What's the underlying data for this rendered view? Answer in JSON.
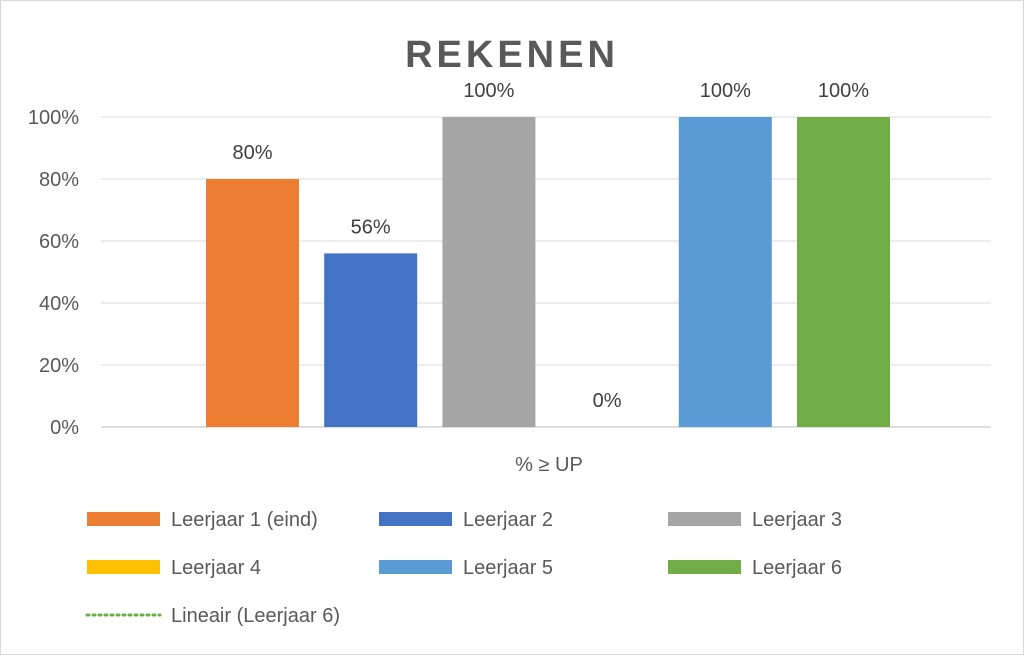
{
  "chart_data": {
    "type": "bar",
    "title": "REKENEN",
    "categories": [
      "% ≥ UP"
    ],
    "series": [
      {
        "name": "Leerjaar 1 (eind)",
        "values": [
          80
        ],
        "label": "80%",
        "color": "#ED7D31"
      },
      {
        "name": "Leerjaar 2",
        "values": [
          56
        ],
        "label": "56%",
        "color": "#4472C4"
      },
      {
        "name": "Leerjaar 3",
        "values": [
          100
        ],
        "label": "100%",
        "color": "#A5A5A5"
      },
      {
        "name": "Leerjaar 4",
        "values": [
          0
        ],
        "label": "0%",
        "color": "#FFC000"
      },
      {
        "name": "Leerjaar 5",
        "values": [
          100
        ],
        "label": "100%",
        "color": "#5B9BD5"
      },
      {
        "name": "Leerjaar 6",
        "values": [
          100
        ],
        "label": "100%",
        "color": "#70AD47"
      }
    ],
    "trendline": {
      "name": "Lineair (Leerjaar 6)",
      "color": "#70AD47",
      "style": "dotted"
    },
    "ylim": [
      0,
      100
    ],
    "yticks": [
      "0%",
      "20%",
      "40%",
      "60%",
      "80%",
      "100%"
    ],
    "grid": true,
    "legend": "bottom"
  }
}
